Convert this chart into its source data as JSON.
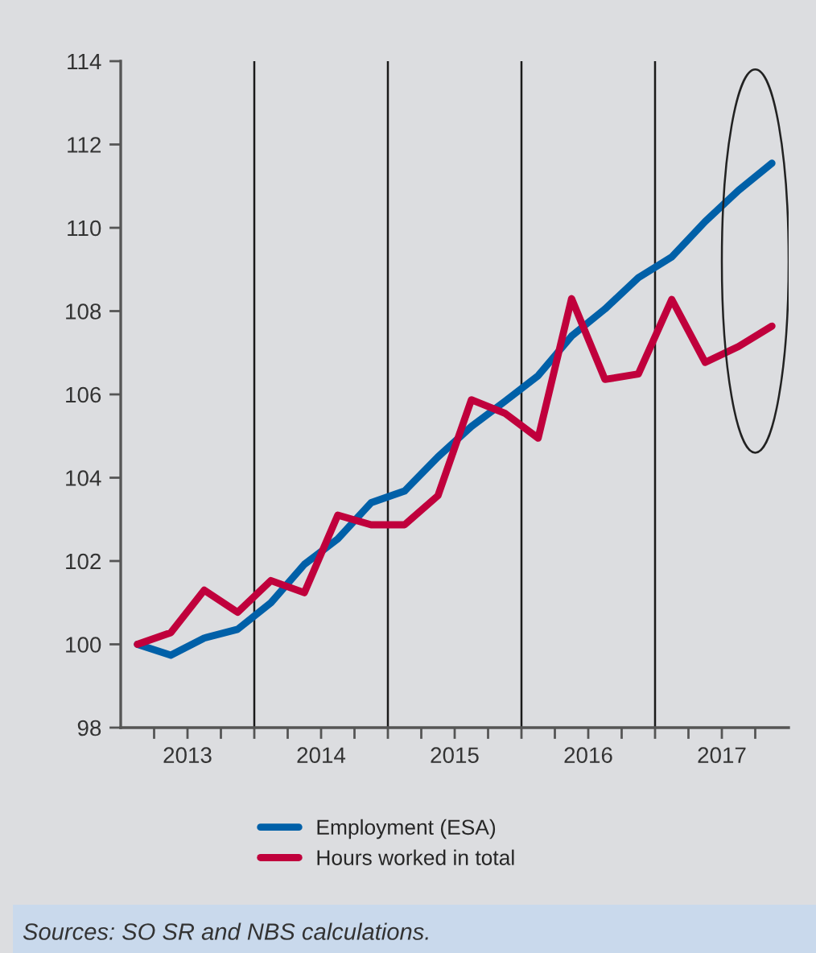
{
  "chart_data": {
    "type": "line",
    "x": [
      2013.125,
      2013.375,
      2013.625,
      2013.875,
      2014.125,
      2014.375,
      2014.625,
      2014.875,
      2015.125,
      2015.375,
      2015.625,
      2015.875,
      2016.125,
      2016.375,
      2016.625,
      2016.875,
      2017.125,
      2017.375,
      2017.625,
      2017.875
    ],
    "series": [
      {
        "name": "Employment (ESA)",
        "color": "#0060a8",
        "values": [
          100,
          99.74,
          100.15,
          100.36,
          101.0,
          101.92,
          102.53,
          103.4,
          103.68,
          104.5,
          105.23,
          105.83,
          106.45,
          107.4,
          108.05,
          108.8,
          109.3,
          110.15,
          110.9,
          111.55
        ]
      },
      {
        "name": "Hours worked in total",
        "color": "#c0003c",
        "values": [
          100,
          100.28,
          101.3,
          100.77,
          101.53,
          101.24,
          103.1,
          102.87,
          102.87,
          103.57,
          105.87,
          105.55,
          104.95,
          108.3,
          106.36,
          106.49,
          108.28,
          106.77,
          107.15,
          107.64
        ]
      }
    ],
    "xlim": [
      2013,
      2018
    ],
    "xticks": [
      {
        "value": 2013.25,
        "label": null
      },
      {
        "value": 2013.5,
        "label": "2013"
      },
      {
        "value": 2013.75,
        "label": null
      },
      {
        "value": 2014,
        "label": null
      },
      {
        "value": 2014.25,
        "label": null
      },
      {
        "value": 2014.5,
        "label": "2014"
      },
      {
        "value": 2014.75,
        "label": null
      },
      {
        "value": 2015,
        "label": null
      },
      {
        "value": 2015.25,
        "label": null
      },
      {
        "value": 2015.5,
        "label": "2015"
      },
      {
        "value": 2015.75,
        "label": null
      },
      {
        "value": 2016,
        "label": null
      },
      {
        "value": 2016.25,
        "label": null
      },
      {
        "value": 2016.5,
        "label": "2016"
      },
      {
        "value": 2016.75,
        "label": null
      },
      {
        "value": 2017,
        "label": null
      },
      {
        "value": 2017.25,
        "label": null
      },
      {
        "value": 2017.5,
        "label": "2017"
      },
      {
        "value": 2017.75,
        "label": null
      }
    ],
    "ylim": [
      98,
      114
    ],
    "yticks": [
      98,
      100,
      102,
      104,
      106,
      108,
      110,
      112,
      114
    ],
    "ref_lines": [
      {
        "axis": "x",
        "value": 2014,
        "color": "#1a1a1a"
      },
      {
        "axis": "x",
        "value": 2015,
        "color": "#1a1a1a"
      },
      {
        "axis": "x",
        "value": 2016,
        "color": "#1a1a1a"
      },
      {
        "axis": "x",
        "value": 2017,
        "color": "#1a1a1a"
      }
    ],
    "grid": false,
    "legend": "bottom",
    "marker": "none",
    "line_style": "solid",
    "annotations": [
      "Sources: SO SR and NBS calculations."
    ]
  }
}
